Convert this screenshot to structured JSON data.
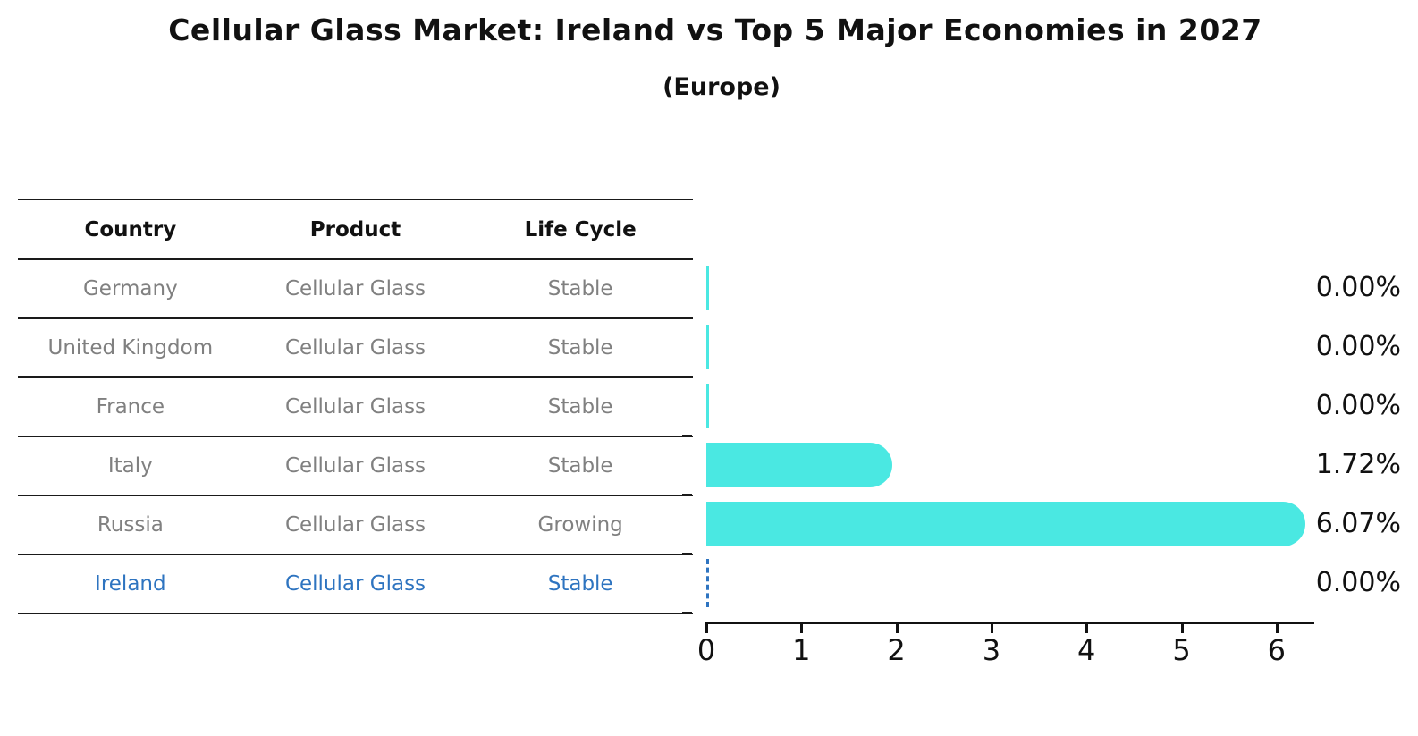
{
  "title": "Cellular Glass Market: Ireland vs Top 5 Major Economies in 2027",
  "subtitle": "(Europe)",
  "table": {
    "headers": [
      "Country",
      "Product",
      "Life Cycle"
    ],
    "rows": [
      {
        "country": "Germany",
        "product": "Cellular Glass",
        "life_cycle": "Stable",
        "highlight": false
      },
      {
        "country": "United Kingdom",
        "product": "Cellular Glass",
        "life_cycle": "Stable",
        "highlight": false
      },
      {
        "country": "France",
        "product": "Cellular Glass",
        "life_cycle": "Stable",
        "highlight": false
      },
      {
        "country": "Italy",
        "product": "Cellular Glass",
        "life_cycle": "Stable",
        "highlight": false
      },
      {
        "country": "Russia",
        "product": "Cellular Glass",
        "life_cycle": "Growing",
        "highlight": false
      },
      {
        "country": "Ireland",
        "product": "Cellular Glass",
        "life_cycle": "Stable",
        "highlight": true
      }
    ]
  },
  "chart_data": {
    "type": "bar",
    "orientation": "horizontal",
    "title": "Cellular Glass Market: Ireland vs Top 5 Major Economies in 2027",
    "subtitle": "(Europe)",
    "categories": [
      "Germany",
      "United Kingdom",
      "France",
      "Italy",
      "Russia",
      "Ireland"
    ],
    "values": [
      0.0,
      0.0,
      0.0,
      1.72,
      6.07,
      0.0
    ],
    "value_labels": [
      "0.00%",
      "0.00%",
      "0.00%",
      "1.72%",
      "6.07%",
      "0.00%"
    ],
    "highlight_index": 5,
    "highlight_style": "dashed-line",
    "x_ticks": [
      0,
      1,
      2,
      3,
      4,
      5,
      6
    ],
    "xlim": [
      0,
      6.4
    ],
    "grid": false,
    "legend": false
  },
  "colors": {
    "bar": "#4AE8E2",
    "highlight": "#2E74C0",
    "text": "#111111",
    "muted_text": "#808080",
    "line": "#1a1a1a"
  }
}
